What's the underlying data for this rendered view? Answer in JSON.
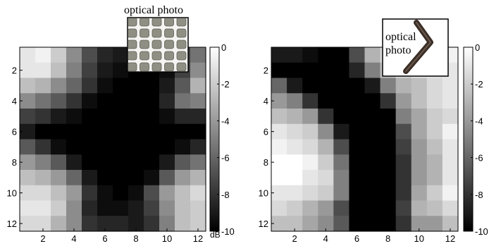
{
  "chart_data": [
    {
      "type": "heatmap",
      "x_ticks": [
        2,
        4,
        6,
        8,
        10,
        12
      ],
      "y_ticks": [
        2,
        4,
        6,
        8,
        10,
        12
      ],
      "xlim": [
        0.5,
        12.5
      ],
      "ylim": [
        0.5,
        12.5
      ],
      "colorbar": {
        "ticks": [
          0,
          -2,
          -4,
          -6,
          -8,
          -10
        ],
        "range": [
          -10,
          0
        ],
        "unit": "dB",
        "colormap": "gray"
      },
      "inset": {
        "label": "optical photo",
        "subject": "square grid mesh"
      },
      "values": [
        [
          -1,
          -0.5,
          -2,
          -4.5,
          -7,
          -8.5,
          -9,
          -10,
          -10,
          -9.5,
          -7.5,
          -5.5
        ],
        [
          -1,
          -1,
          -2.5,
          -5,
          -7.5,
          -9,
          -9.5,
          -10,
          -10,
          -9.5,
          -7.5,
          -4.5
        ],
        [
          -2.5,
          -3,
          -4.5,
          -6,
          -8,
          -9.5,
          -10,
          -10,
          -10,
          -9,
          -6.5,
          -3
        ],
        [
          -4.5,
          -5.5,
          -6.5,
          -8,
          -9.5,
          -10,
          -10,
          -10,
          -10,
          -8.5,
          -5.5,
          -5
        ],
        [
          -7.5,
          -8,
          -9,
          -9.5,
          -10,
          -10,
          -10,
          -10,
          -10,
          -9.5,
          -8.5,
          -8.5
        ],
        [
          -9,
          -10,
          -10,
          -10,
          -10,
          -10,
          -10,
          -10,
          -10,
          -10,
          -10,
          -10
        ],
        [
          -6.5,
          -8,
          -9.5,
          -10,
          -10,
          -10,
          -10,
          -10,
          -10,
          -10,
          -9.5,
          -8.5
        ],
        [
          -4,
          -5,
          -6.5,
          -9,
          -10,
          -10,
          -10,
          -10,
          -10,
          -9,
          -6.5,
          -5.5
        ],
        [
          -2.5,
          -3,
          -4,
          -6,
          -9,
          -10,
          -10,
          -10,
          -9.5,
          -6.5,
          -4,
          -3
        ],
        [
          -1.5,
          -1.5,
          -2.5,
          -4,
          -8,
          -9.5,
          -10,
          -9.5,
          -7,
          -4,
          -2.5,
          -1.5
        ],
        [
          -1,
          -1,
          -2,
          -4.5,
          -8.5,
          -9.5,
          -9.5,
          -9,
          -7.5,
          -4.5,
          -2.5,
          -2
        ],
        [
          -1.5,
          -1.5,
          -3,
          -4.5,
          -8,
          -8.5,
          -8.5,
          -9,
          -8,
          -5,
          -2.5,
          -2
        ]
      ]
    },
    {
      "type": "heatmap",
      "x_ticks": [
        2,
        4,
        6,
        8,
        10,
        12
      ],
      "y_ticks": [
        2,
        4,
        6,
        8,
        10,
        12
      ],
      "xlim": [
        0.5,
        12.5
      ],
      "ylim": [
        0.5,
        12.5
      ],
      "colorbar": {
        "ticks": [
          0,
          -2,
          -4,
          -6,
          -8,
          -10
        ],
        "range": [
          -10,
          0
        ],
        "unit": "dB",
        "colormap": "gray"
      },
      "inset": {
        "label_lines": [
          "optical",
          "photo"
        ],
        "subject": "bent wire"
      },
      "values": [
        [
          -9,
          -9,
          -9.5,
          -10,
          -10,
          -7,
          -3,
          -1.5,
          -1,
          -1,
          -0.5,
          -0.5
        ],
        [
          -10,
          -10,
          -10,
          -10,
          -10,
          -8.5,
          -5,
          -2.5,
          -1.5,
          -1,
          -1,
          -1
        ],
        [
          -6,
          -9,
          -10,
          -10,
          -10,
          -10,
          -9,
          -5,
          -3,
          -2.5,
          -1.5,
          -1
        ],
        [
          -4,
          -5,
          -8,
          -10,
          -10,
          -10,
          -10,
          -8,
          -4,
          -2.5,
          -1.5,
          -1
        ],
        [
          -2.5,
          -3,
          -4,
          -8,
          -10,
          -10,
          -10,
          -10,
          -5,
          -3.5,
          -2,
          -1.5
        ],
        [
          -1,
          -1.5,
          -2,
          -4.5,
          -9,
          -10,
          -10,
          -10,
          -7,
          -3.5,
          -2,
          -0.5
        ],
        [
          -0.5,
          -1,
          -1.5,
          -3,
          -7,
          -10,
          -10,
          -10,
          -7.5,
          -4,
          -2.5,
          -1
        ],
        [
          0,
          0,
          -0.5,
          -2,
          -5.5,
          -10,
          -10,
          -10,
          -8,
          -4,
          -3,
          -1
        ],
        [
          0,
          0,
          -1,
          -1.5,
          -5,
          -10,
          -10,
          -10,
          -8,
          -4,
          -3,
          -1
        ],
        [
          -1,
          -1,
          -1.5,
          -2,
          -5,
          -10,
          -10,
          -10,
          -8,
          -3.5,
          -2,
          -0.5
        ],
        [
          -1.5,
          -2,
          -3,
          -4,
          -7,
          -10,
          -10,
          -10,
          -7.5,
          -3,
          -2.5,
          -1.5
        ],
        [
          -2.5,
          -2.5,
          -3.5,
          -4.5,
          -6.5,
          -10,
          -10,
          -10,
          -8,
          -4,
          -4,
          -2.5
        ]
      ]
    }
  ]
}
